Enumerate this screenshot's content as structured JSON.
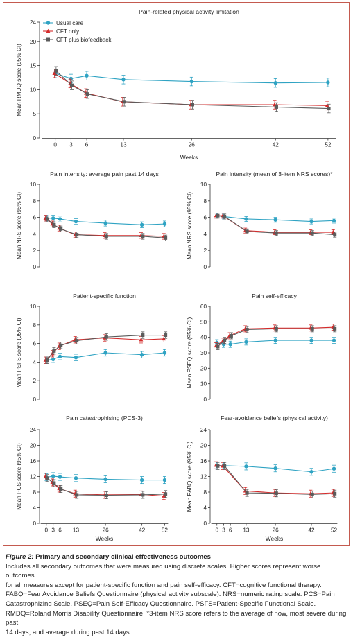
{
  "colors": {
    "usual": "#2fa3c3",
    "cft": "#d42b2b",
    "bio": "#5b5b5b",
    "frame": "#c45a4f",
    "axis": "#333333"
  },
  "legend": {
    "items": [
      {
        "label": "Usual care",
        "marker": "circle",
        "color": "#2fa3c3"
      },
      {
        "label": "CFT only",
        "marker": "triangle",
        "color": "#d42b2b"
      },
      {
        "label": "CFT plus biofeedback",
        "marker": "square",
        "color": "#5b5b5b"
      }
    ]
  },
  "chart_data": [
    {
      "type": "line",
      "title": "Pain-related physical activity limitation",
      "ylabel": "Mean RMDQ score (95% CI)",
      "xlabel": "Weeks",
      "ylim": [
        0,
        24
      ],
      "yticks": [
        "0",
        "5",
        "10",
        "15",
        "20",
        "24"
      ],
      "ytick_values": [
        0,
        5,
        10,
        15,
        20,
        24
      ],
      "xticks": [
        "0",
        "3",
        "6",
        "13",
        "26",
        "42",
        "52"
      ],
      "x": [
        0,
        3,
        6,
        13,
        26,
        42,
        52
      ],
      "legend": "top-left",
      "series": [
        {
          "name": "Usual care",
          "values": [
            13.4,
            12.3,
            12.9,
            12.1,
            11.7,
            11.4,
            11.5
          ],
          "ci": [
            0.9,
            0.9,
            0.9,
            0.9,
            0.9,
            0.9,
            0.9
          ]
        },
        {
          "name": "CFT only",
          "values": [
            13.4,
            11.3,
            9.3,
            7.5,
            6.9,
            6.9,
            6.7
          ],
          "ci": [
            0.9,
            0.9,
            0.9,
            0.9,
            0.9,
            0.9,
            0.9
          ]
        },
        {
          "name": "CFT plus biofeedback",
          "values": [
            13.9,
            10.9,
            9.1,
            7.5,
            6.9,
            6.4,
            6.1
          ],
          "ci": [
            0.9,
            0.9,
            0.9,
            0.9,
            0.9,
            0.9,
            0.9
          ]
        }
      ]
    },
    {
      "type": "line",
      "title": "Pain intensity: average pain past 14 days",
      "ylabel": "Mean NRS score (95% CI)",
      "xlabel": "",
      "ylim": [
        0,
        10
      ],
      "yticks": [
        "0",
        "2",
        "4",
        "6",
        "8",
        "10"
      ],
      "ytick_values": [
        0,
        2,
        4,
        6,
        8,
        10
      ],
      "xticks": [],
      "x": [
        0,
        3,
        6,
        13,
        26,
        42,
        52
      ],
      "series": [
        {
          "name": "Usual care",
          "values": [
            5.9,
            5.9,
            5.8,
            5.5,
            5.3,
            5.1,
            5.2
          ],
          "ci": [
            0.35,
            0.35,
            0.35,
            0.35,
            0.35,
            0.35,
            0.35
          ]
        },
        {
          "name": "CFT only",
          "values": [
            5.9,
            5.2,
            4.7,
            3.9,
            3.8,
            3.8,
            3.7
          ],
          "ci": [
            0.35,
            0.35,
            0.35,
            0.35,
            0.35,
            0.35,
            0.35
          ]
        },
        {
          "name": "CFT plus biofeedback",
          "values": [
            5.8,
            5.1,
            4.6,
            3.9,
            3.7,
            3.7,
            3.5
          ],
          "ci": [
            0.35,
            0.35,
            0.35,
            0.35,
            0.35,
            0.35,
            0.35
          ]
        }
      ]
    },
    {
      "type": "line",
      "title": "Pain intensity (mean of 3-item NRS scores)*",
      "ylabel": "Mean NRS score (95% CI)",
      "xlabel": "",
      "ylim": [
        0,
        10
      ],
      "yticks": [
        "0",
        "2",
        "4",
        "6",
        "8",
        "10"
      ],
      "ytick_values": [
        0,
        2,
        4,
        6,
        8,
        10
      ],
      "xticks": [],
      "x": [
        0,
        3,
        13,
        26,
        42,
        52
      ],
      "series": [
        {
          "name": "Usual care",
          "values": [
            6.2,
            6.1,
            5.8,
            5.7,
            5.5,
            5.6
          ],
          "ci": [
            0.3,
            0.3,
            0.3,
            0.3,
            0.3,
            0.3
          ]
        },
        {
          "name": "CFT only",
          "values": [
            6.2,
            6.2,
            4.4,
            4.2,
            4.2,
            4.2
          ],
          "ci": [
            0.3,
            0.3,
            0.3,
            0.3,
            0.3,
            0.3
          ]
        },
        {
          "name": "CFT plus biofeedback",
          "values": [
            6.2,
            6.1,
            4.3,
            4.1,
            4.1,
            3.9
          ],
          "ci": [
            0.3,
            0.3,
            0.3,
            0.3,
            0.3,
            0.3
          ]
        }
      ]
    },
    {
      "type": "line",
      "title": "Patient-specific function",
      "ylabel": "Mean PSFS score (95% CI)",
      "xlabel": "",
      "ylim": [
        0,
        10
      ],
      "yticks": [
        "0",
        "2",
        "4",
        "6",
        "8",
        "10"
      ],
      "ytick_values": [
        0,
        2,
        4,
        6,
        8,
        10
      ],
      "xticks": [],
      "x": [
        0,
        3,
        6,
        13,
        26,
        42,
        52
      ],
      "series": [
        {
          "name": "Usual care",
          "values": [
            4.2,
            4.3,
            4.6,
            4.5,
            5.0,
            4.8,
            5.0
          ],
          "ci": [
            0.35,
            0.35,
            0.35,
            0.35,
            0.35,
            0.35,
            0.35
          ]
        },
        {
          "name": "CFT only",
          "values": [
            4.2,
            4.9,
            5.7,
            6.4,
            6.6,
            6.4,
            6.5
          ],
          "ci": [
            0.35,
            0.35,
            0.35,
            0.35,
            0.35,
            0.35,
            0.35
          ]
        },
        {
          "name": "CFT plus biofeedback",
          "values": [
            4.2,
            5.2,
            5.8,
            6.3,
            6.7,
            6.9,
            6.9
          ],
          "ci": [
            0.35,
            0.35,
            0.35,
            0.35,
            0.35,
            0.35,
            0.35
          ]
        }
      ]
    },
    {
      "type": "line",
      "title": "Pain self-efficacy",
      "ylabel": "Mean PSEQ score (95% CI)",
      "xlabel": "",
      "ylim": [
        0,
        60
      ],
      "yticks": [
        "0",
        "10",
        "20",
        "30",
        "40",
        "50",
        "60"
      ],
      "ytick_values": [
        0,
        10,
        20,
        30,
        40,
        50,
        60
      ],
      "xticks": [],
      "x": [
        0,
        3,
        6,
        13,
        26,
        42,
        52
      ],
      "series": [
        {
          "name": "Usual care",
          "values": [
            36.5,
            35.5,
            35.5,
            37.0,
            38.0,
            38.0,
            38.0
          ],
          "ci": [
            2,
            2,
            2,
            2,
            2,
            2,
            2
          ]
        },
        {
          "name": "CFT only",
          "values": [
            34.5,
            37.5,
            41.0,
            45.5,
            46.0,
            46.0,
            46.5
          ],
          "ci": [
            2,
            2,
            2,
            2,
            2,
            2,
            2
          ]
        },
        {
          "name": "CFT plus biofeedback",
          "values": [
            34.0,
            38.0,
            41.0,
            45.0,
            45.5,
            45.5,
            45.5
          ],
          "ci": [
            2,
            2,
            2,
            2,
            2,
            2,
            2
          ]
        }
      ]
    },
    {
      "type": "line",
      "title": "Pain catastrophising (PCS-3)",
      "ylabel": "Mean PCS score (95% CI)",
      "xlabel": "Weeks",
      "ylim": [
        0,
        24
      ],
      "yticks": [
        "0",
        "4",
        "8",
        "12",
        "16",
        "20",
        "24"
      ],
      "ytick_values": [
        0,
        4,
        8,
        12,
        16,
        20,
        24
      ],
      "xticks": [
        "0",
        "3",
        "6",
        "13",
        "26",
        "42",
        "52"
      ],
      "x": [
        0,
        3,
        6,
        13,
        26,
        42,
        52
      ],
      "series": [
        {
          "name": "Usual care",
          "values": [
            11.8,
            12.1,
            11.9,
            11.6,
            11.3,
            11.1,
            11.1
          ],
          "ci": [
            0.9,
            0.9,
            0.9,
            0.9,
            0.9,
            0.9,
            0.9
          ]
        },
        {
          "name": "CFT only",
          "values": [
            12.0,
            10.5,
            8.9,
            7.6,
            7.3,
            7.4,
            7.0
          ],
          "ci": [
            0.9,
            0.9,
            0.9,
            0.9,
            0.9,
            0.9,
            0.9
          ]
        },
        {
          "name": "CFT plus biofeedback",
          "values": [
            11.6,
            10.3,
            8.8,
            7.3,
            7.2,
            7.3,
            7.5
          ],
          "ci": [
            0.9,
            0.9,
            0.9,
            0.9,
            0.9,
            0.9,
            0.9
          ]
        }
      ]
    },
    {
      "type": "line",
      "title": "Fear-avoidance beliefs (physical activity)",
      "ylabel": "Mean FABQ score (95% CI)",
      "xlabel": "Weeks",
      "ylim": [
        0,
        24
      ],
      "yticks": [
        "0",
        "4",
        "8",
        "12",
        "16",
        "20",
        "24"
      ],
      "ytick_values": [
        0,
        4,
        8,
        12,
        16,
        20,
        24
      ],
      "xticks": [
        "0",
        "3",
        "6",
        "13",
        "26",
        "42",
        "52"
      ],
      "x": [
        0,
        3,
        13,
        26,
        42,
        52
      ],
      "series": [
        {
          "name": "Usual care",
          "values": [
            14.8,
            14.8,
            14.6,
            14.1,
            13.2,
            14.0
          ],
          "ci": [
            0.9,
            0.9,
            0.9,
            0.9,
            0.9,
            0.9
          ]
        },
        {
          "name": "CFT only",
          "values": [
            14.9,
            14.7,
            8.3,
            7.8,
            7.6,
            7.8
          ],
          "ci": [
            0.9,
            0.9,
            0.9,
            0.9,
            0.9,
            0.9
          ]
        },
        {
          "name": "CFT plus biofeedback",
          "values": [
            14.7,
            14.7,
            7.8,
            7.7,
            7.4,
            7.6
          ],
          "ci": [
            0.9,
            0.9,
            0.9,
            0.9,
            0.9,
            0.9
          ]
        }
      ]
    }
  ],
  "caption": {
    "title_label": "Figure 2:",
    "title_text": "Primary and secondary clinical effectiveness outcomes",
    "lines": [
      "Includes all secondary outcomes that were measured using discrete scales. Higher scores represent worse outcomes",
      "for all measures except for patient-specific function and pain self-efficacy. CFT=cognitive functional therapy.",
      "FABQ=Fear Avoidance Beliefs Questionnaire (physical activity subscale). NRS=numeric rating scale. PCS=Pain",
      "Catastrophizing Scale. PSEQ=Pain Self-Efficacy Questionnaire. PSFS=Patient-Specific Functional Scale.",
      "RMDQ=Roland Morris Disability Questionnaire. *3-item NRS score refers to the average of now, most severe during past",
      "14 days, and average during past 14 days."
    ]
  }
}
